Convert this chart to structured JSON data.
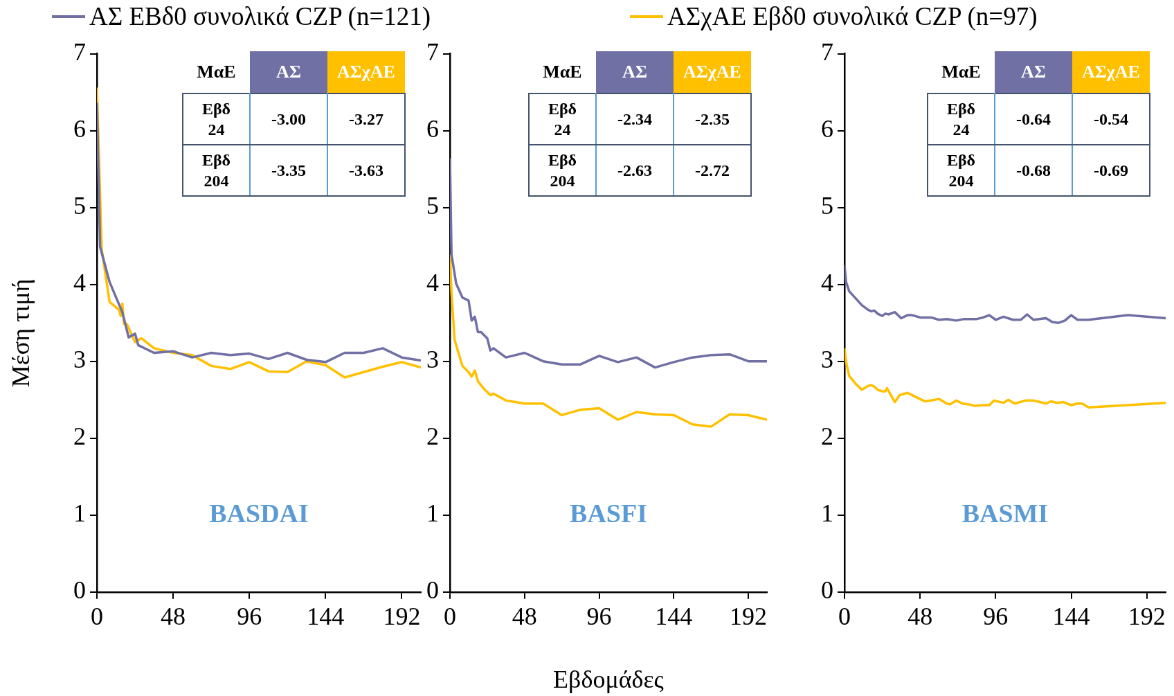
{
  "chart_data": [
    {
      "type": "line",
      "title": "BASDAI",
      "ylabel": "Μέση τιμή",
      "legend": "top",
      "marker": "none",
      "xlim": [
        0,
        204
      ],
      "xticks": [
        0,
        48,
        96,
        144,
        192
      ],
      "ylim": [
        0,
        7
      ],
      "yticks": [
        0,
        1,
        2,
        3,
        4,
        5,
        6,
        7
      ],
      "annotations": [
        "ΜαΕ",
        "ΑΣ",
        "ΑΣχΑΕ",
        "Εβδ\n24",
        "-3.00",
        "-3.27",
        "Εβδ\n204",
        "-3.35",
        "-3.63"
      ],
      "series": [
        {
          "name": "ΑΣ ΕΒδ0 συνολικά CZP (n=121)",
          "color": "#7070a5",
          "x": [
            0,
            2,
            8,
            16,
            20,
            24,
            26,
            36,
            48,
            60,
            72,
            84,
            96,
            108,
            120,
            132,
            144,
            156,
            168,
            180,
            192,
            204
          ],
          "values": [
            6.36,
            4.49,
            4.03,
            3.64,
            3.31,
            3.36,
            3.21,
            3.11,
            3.13,
            3.05,
            3.11,
            3.08,
            3.1,
            3.03,
            3.11,
            3.02,
            2.99,
            3.11,
            3.11,
            3.17,
            3.05,
            3.01
          ]
        },
        {
          "name": "ΑΣχΑΕ  Εβδ0 συνολικά CZP (n=97)",
          "color": "#ffc000",
          "x": [
            0,
            3,
            8,
            14,
            15,
            16,
            17,
            19,
            24,
            28,
            36,
            48,
            60,
            72,
            84,
            96,
            108,
            120,
            132,
            144,
            156,
            168,
            180,
            192,
            204
          ],
          "values": [
            6.56,
            4.46,
            3.77,
            3.67,
            3.59,
            3.75,
            3.49,
            3.48,
            3.25,
            3.3,
            3.17,
            3.11,
            3.08,
            2.94,
            2.9,
            2.99,
            2.87,
            2.86,
            3.0,
            2.95,
            2.79,
            2.86,
            2.93,
            2.99,
            2.92
          ]
        }
      ]
    },
    {
      "type": "line",
      "title": "BASFI",
      "xlabel": "Εβδομάδες",
      "marker": "none",
      "xlim": [
        0,
        204
      ],
      "xticks": [
        0,
        48,
        96,
        144,
        192
      ],
      "ylim": [
        0,
        7
      ],
      "yticks": [
        0,
        1,
        2,
        3,
        4,
        5,
        6,
        7
      ],
      "annotations": [
        "ΜαΕ",
        "ΑΣ",
        "ΑΣχΑΕ",
        "Εβδ\n24",
        "-2.34",
        "-2.35",
        "Εβδ\n204",
        "-2.63",
        "-2.72"
      ],
      "series": [
        {
          "color": "#7070a5",
          "x": [
            0,
            1,
            4,
            8,
            12,
            14,
            16,
            18,
            20,
            24,
            26,
            28,
            36,
            48,
            60,
            72,
            84,
            96,
            108,
            120,
            132,
            144,
            156,
            168,
            180,
            192,
            204
          ],
          "values": [
            5.64,
            4.39,
            4.01,
            3.83,
            3.79,
            3.53,
            3.58,
            3.38,
            3.38,
            3.3,
            3.14,
            3.17,
            3.05,
            3.11,
            3.0,
            2.96,
            2.96,
            3.07,
            2.99,
            3.05,
            2.92,
            2.99,
            3.05,
            3.08,
            3.09,
            3.0,
            3.0
          ]
        },
        {
          "color": "#ffc000",
          "x": [
            0,
            1,
            3,
            8,
            12,
            14,
            16,
            18,
            22,
            26,
            28,
            36,
            48,
            60,
            72,
            84,
            96,
            108,
            120,
            132,
            144,
            156,
            168,
            180,
            192,
            204
          ],
          "values": [
            4.39,
            3.89,
            3.28,
            2.94,
            2.86,
            2.8,
            2.88,
            2.74,
            2.64,
            2.56,
            2.58,
            2.49,
            2.45,
            2.45,
            2.3,
            2.37,
            2.39,
            2.24,
            2.34,
            2.31,
            2.3,
            2.18,
            2.15,
            2.31,
            2.3,
            2.24
          ]
        }
      ]
    },
    {
      "type": "line",
      "title": "BASMI",
      "marker": "none",
      "xlim": [
        0,
        204
      ],
      "xticks": [
        0,
        48,
        96,
        144,
        192
      ],
      "ylim": [
        0,
        7
      ],
      "yticks": [
        0,
        1,
        2,
        3,
        4,
        5,
        6,
        7
      ],
      "annotations": [
        "ΜαΕ",
        "ΑΣ",
        "ΑΣχΑΕ",
        "Εβδ\n24",
        "-0.64",
        "-0.54",
        "Εβδ\n204",
        "-0.68",
        "-0.69"
      ],
      "series": [
        {
          "color": "#7070a5",
          "x": [
            0,
            1,
            3,
            7,
            11,
            15,
            17,
            19,
            21,
            24,
            26,
            28,
            32,
            36,
            40,
            43,
            48,
            55,
            60,
            65,
            71,
            76,
            84,
            88,
            92,
            96,
            101,
            107,
            112,
            116,
            120,
            128,
            132,
            136,
            140,
            144,
            148,
            155,
            180,
            204
          ],
          "values": [
            4.25,
            4.03,
            3.91,
            3.82,
            3.73,
            3.67,
            3.65,
            3.66,
            3.62,
            3.59,
            3.62,
            3.61,
            3.64,
            3.56,
            3.6,
            3.6,
            3.57,
            3.57,
            3.54,
            3.55,
            3.53,
            3.55,
            3.55,
            3.57,
            3.6,
            3.54,
            3.58,
            3.54,
            3.54,
            3.61,
            3.54,
            3.56,
            3.51,
            3.5,
            3.53,
            3.6,
            3.54,
            3.54,
            3.6,
            3.56
          ]
        },
        {
          "color": "#ffc000",
          "x": [
            0,
            1,
            3,
            7,
            11,
            15,
            17,
            19,
            21,
            24,
            26,
            27,
            32,
            35,
            40,
            43,
            48,
            51,
            55,
            60,
            65,
            67,
            71,
            75,
            79,
            83,
            88,
            92,
            95,
            101,
            104,
            108,
            115,
            120,
            124,
            128,
            131,
            135,
            139,
            144,
            148,
            151,
            155,
            204
          ],
          "values": [
            3.17,
            2.99,
            2.81,
            2.71,
            2.63,
            2.68,
            2.69,
            2.67,
            2.63,
            2.61,
            2.61,
            2.65,
            2.47,
            2.56,
            2.59,
            2.56,
            2.51,
            2.48,
            2.49,
            2.51,
            2.45,
            2.44,
            2.49,
            2.45,
            2.44,
            2.42,
            2.43,
            2.43,
            2.49,
            2.46,
            2.5,
            2.45,
            2.49,
            2.49,
            2.47,
            2.45,
            2.48,
            2.46,
            2.47,
            2.43,
            2.45,
            2.45,
            2.4,
            2.46
          ]
        }
      ]
    }
  ]
}
